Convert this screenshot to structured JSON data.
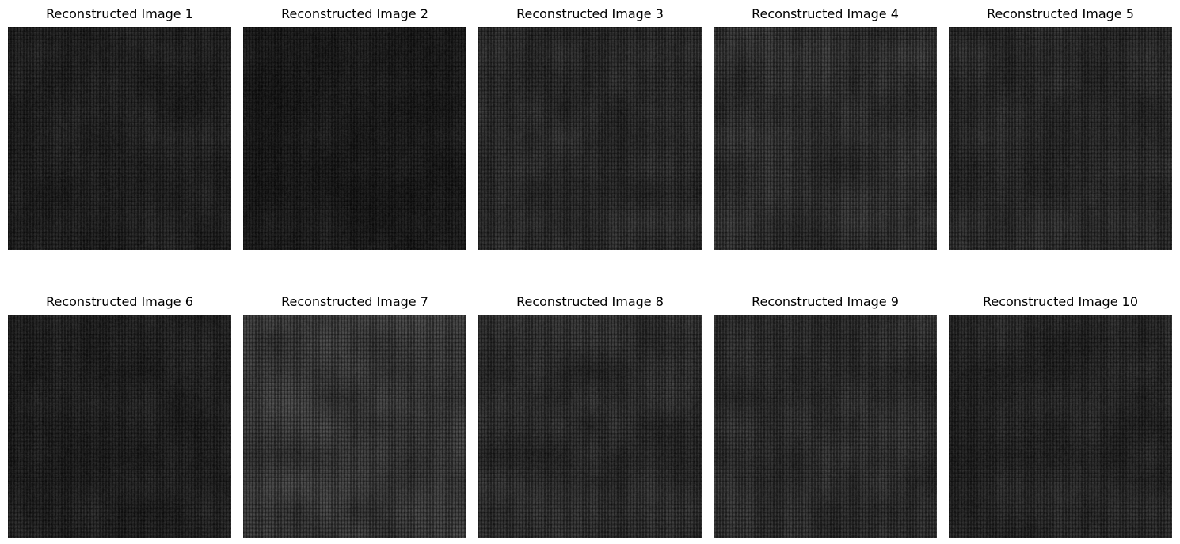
{
  "figure": {
    "panels": [
      {
        "title": "Reconstructed Image 1",
        "brightness": 0.16,
        "seed": 11
      },
      {
        "title": "Reconstructed Image 2",
        "brightness": 0.13,
        "seed": 23
      },
      {
        "title": "Reconstructed Image 3",
        "brightness": 0.2,
        "seed": 37
      },
      {
        "title": "Reconstructed Image 4",
        "brightness": 0.22,
        "seed": 41
      },
      {
        "title": "Reconstructed Image 5",
        "brightness": 0.2,
        "seed": 53
      },
      {
        "title": "Reconstructed Image 6",
        "brightness": 0.16,
        "seed": 67
      },
      {
        "title": "Reconstructed Image 7",
        "brightness": 0.26,
        "seed": 71
      },
      {
        "title": "Reconstructed Image 8",
        "brightness": 0.21,
        "seed": 83
      },
      {
        "title": "Reconstructed Image 9",
        "brightness": 0.22,
        "seed": 97
      },
      {
        "title": "Reconstructed Image 10",
        "brightness": 0.18,
        "seed": 101
      }
    ]
  }
}
